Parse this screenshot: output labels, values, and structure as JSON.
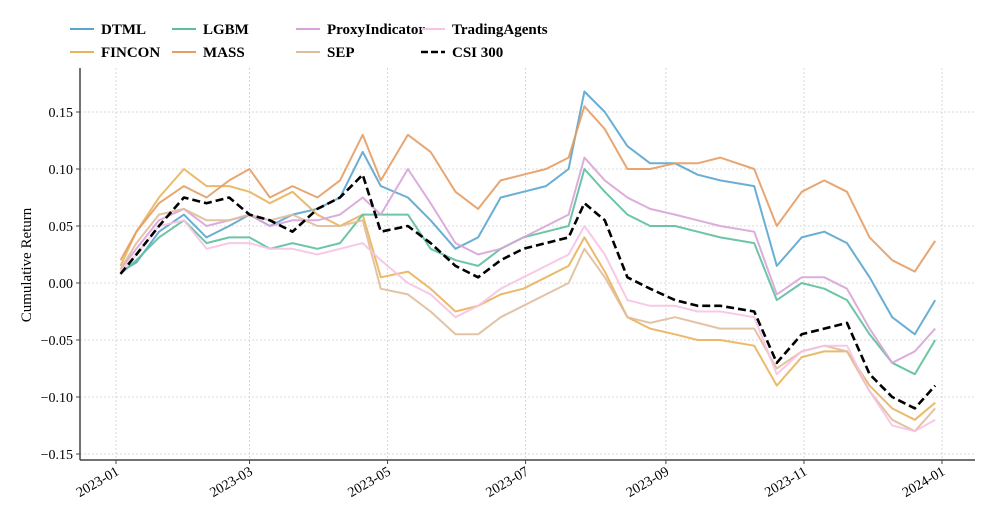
{
  "chart_data": {
    "type": "line",
    "title": "",
    "xlabel": "",
    "ylabel": "Cumulative Return",
    "ylim": [
      -0.155,
      0.19
    ],
    "xlim": [
      "2022-12-20",
      "2024-01-15"
    ],
    "grid": true,
    "legend_position": "top",
    "x_ticks": [
      "2023-01",
      "2023-03",
      "2023-05",
      "2023-07",
      "2023-09",
      "2023-11",
      "2024-01"
    ],
    "x_tick_dates": [
      "2023-01-01",
      "2023-03-01",
      "2023-05-01",
      "2023-07-01",
      "2023-09-01",
      "2023-11-01",
      "2024-01-01"
    ],
    "y_ticks": [
      -0.15,
      -0.1,
      -0.05,
      0.0,
      0.05,
      0.1,
      0.15
    ],
    "y_tick_labels": [
      "−0.15",
      "−0.10",
      "−0.05",
      "0.00",
      "0.05",
      "0.10",
      "0.15"
    ],
    "x": [
      "2023-01-03",
      "2023-01-10",
      "2023-01-20",
      "2023-01-31",
      "2023-02-10",
      "2023-02-20",
      "2023-03-01",
      "2023-03-10",
      "2023-03-20",
      "2023-03-31",
      "2023-04-10",
      "2023-04-20",
      "2023-04-28",
      "2023-05-10",
      "2023-05-20",
      "2023-05-31",
      "2023-06-10",
      "2023-06-20",
      "2023-06-30",
      "2023-07-10",
      "2023-07-20",
      "2023-07-27",
      "2023-08-05",
      "2023-08-15",
      "2023-08-25",
      "2023-09-05",
      "2023-09-15",
      "2023-09-25",
      "2023-10-10",
      "2023-10-20",
      "2023-10-31",
      "2023-11-10",
      "2023-11-20",
      "2023-11-30",
      "2023-12-10",
      "2023-12-20",
      "2023-12-29"
    ],
    "series": [
      {
        "name": "DTML",
        "color": "#5aa5cf",
        "dashed": false,
        "values": [
          0.01,
          0.018,
          0.045,
          0.06,
          0.04,
          0.05,
          0.06,
          0.05,
          0.06,
          0.065,
          0.075,
          0.115,
          0.085,
          0.075,
          0.055,
          0.03,
          0.04,
          0.075,
          0.08,
          0.085,
          0.1,
          0.168,
          0.15,
          0.12,
          0.105,
          0.105,
          0.095,
          0.09,
          0.085,
          0.015,
          0.04,
          0.045,
          0.035,
          0.005,
          -0.03,
          -0.045,
          -0.015
        ]
      },
      {
        "name": "FINCON",
        "color": "#e9b35a",
        "dashed": false,
        "values": [
          0.015,
          0.045,
          0.075,
          0.1,
          0.085,
          0.085,
          0.08,
          0.07,
          0.08,
          0.06,
          0.05,
          0.06,
          0.005,
          0.01,
          -0.005,
          -0.025,
          -0.02,
          -0.01,
          -0.005,
          0.005,
          0.015,
          0.04,
          0.01,
          -0.03,
          -0.04,
          -0.045,
          -0.05,
          -0.05,
          -0.055,
          -0.09,
          -0.065,
          -0.06,
          -0.06,
          -0.09,
          -0.11,
          -0.12,
          -0.105
        ]
      },
      {
        "name": "LGBM",
        "color": "#5cbf9c",
        "dashed": false,
        "values": [
          0.008,
          0.02,
          0.04,
          0.055,
          0.035,
          0.04,
          0.04,
          0.03,
          0.035,
          0.03,
          0.035,
          0.06,
          0.06,
          0.06,
          0.03,
          0.02,
          0.015,
          0.03,
          0.04,
          0.045,
          0.05,
          0.1,
          0.08,
          0.06,
          0.05,
          0.05,
          0.045,
          0.04,
          0.035,
          -0.015,
          0.0,
          -0.005,
          -0.015,
          -0.045,
          -0.07,
          -0.08,
          -0.05
        ]
      },
      {
        "name": "MASS",
        "color": "#e69c63",
        "dashed": false,
        "values": [
          0.02,
          0.045,
          0.07,
          0.085,
          0.075,
          0.09,
          0.1,
          0.075,
          0.085,
          0.075,
          0.09,
          0.13,
          0.09,
          0.13,
          0.115,
          0.08,
          0.065,
          0.09,
          0.095,
          0.1,
          0.11,
          0.155,
          0.135,
          0.1,
          0.1,
          0.105,
          0.105,
          0.11,
          0.1,
          0.05,
          0.08,
          0.09,
          0.08,
          0.04,
          0.02,
          0.01,
          0.037
        ]
      },
      {
        "name": "ProxyIndicator",
        "color": "#d8a4d8",
        "dashed": false,
        "values": [
          0.012,
          0.03,
          0.055,
          0.065,
          0.05,
          0.055,
          0.06,
          0.05,
          0.055,
          0.055,
          0.06,
          0.075,
          0.06,
          0.1,
          0.07,
          0.035,
          0.025,
          0.03,
          0.04,
          0.05,
          0.06,
          0.11,
          0.09,
          0.075,
          0.065,
          0.06,
          0.055,
          0.05,
          0.045,
          -0.01,
          0.005,
          0.005,
          -0.005,
          -0.04,
          -0.07,
          -0.06,
          -0.04
        ]
      },
      {
        "name": "SEP",
        "color": "#dfbc9c",
        "dashed": false,
        "values": [
          0.012,
          0.035,
          0.06,
          0.065,
          0.055,
          0.055,
          0.06,
          0.055,
          0.06,
          0.05,
          0.05,
          0.055,
          -0.005,
          -0.01,
          -0.025,
          -0.045,
          -0.045,
          -0.03,
          -0.02,
          -0.01,
          0.0,
          0.03,
          0.005,
          -0.03,
          -0.035,
          -0.03,
          -0.035,
          -0.04,
          -0.04,
          -0.075,
          -0.06,
          -0.055,
          -0.06,
          -0.095,
          -0.12,
          -0.13,
          -0.11
        ]
      },
      {
        "name": "TradingAgents",
        "color": "#f7c3e3",
        "dashed": false,
        "values": [
          0.01,
          0.025,
          0.05,
          0.055,
          0.03,
          0.035,
          0.035,
          0.03,
          0.03,
          0.025,
          0.03,
          0.035,
          0.02,
          0.0,
          -0.01,
          -0.03,
          -0.02,
          -0.005,
          0.005,
          0.015,
          0.025,
          0.05,
          0.025,
          -0.015,
          -0.02,
          -0.02,
          -0.025,
          -0.025,
          -0.03,
          -0.08,
          -0.06,
          -0.055,
          -0.055,
          -0.095,
          -0.125,
          -0.13,
          -0.12
        ]
      },
      {
        "name": "CSI 300",
        "color": "#000000",
        "dashed": true,
        "values": [
          0.008,
          0.025,
          0.05,
          0.075,
          0.07,
          0.075,
          0.06,
          0.055,
          0.045,
          0.065,
          0.075,
          0.095,
          0.045,
          0.05,
          0.035,
          0.015,
          0.005,
          0.02,
          0.03,
          0.035,
          0.04,
          0.07,
          0.055,
          0.005,
          -0.005,
          -0.015,
          -0.02,
          -0.02,
          -0.025,
          -0.07,
          -0.045,
          -0.04,
          -0.035,
          -0.08,
          -0.1,
          -0.11,
          -0.09
        ]
      }
    ]
  }
}
